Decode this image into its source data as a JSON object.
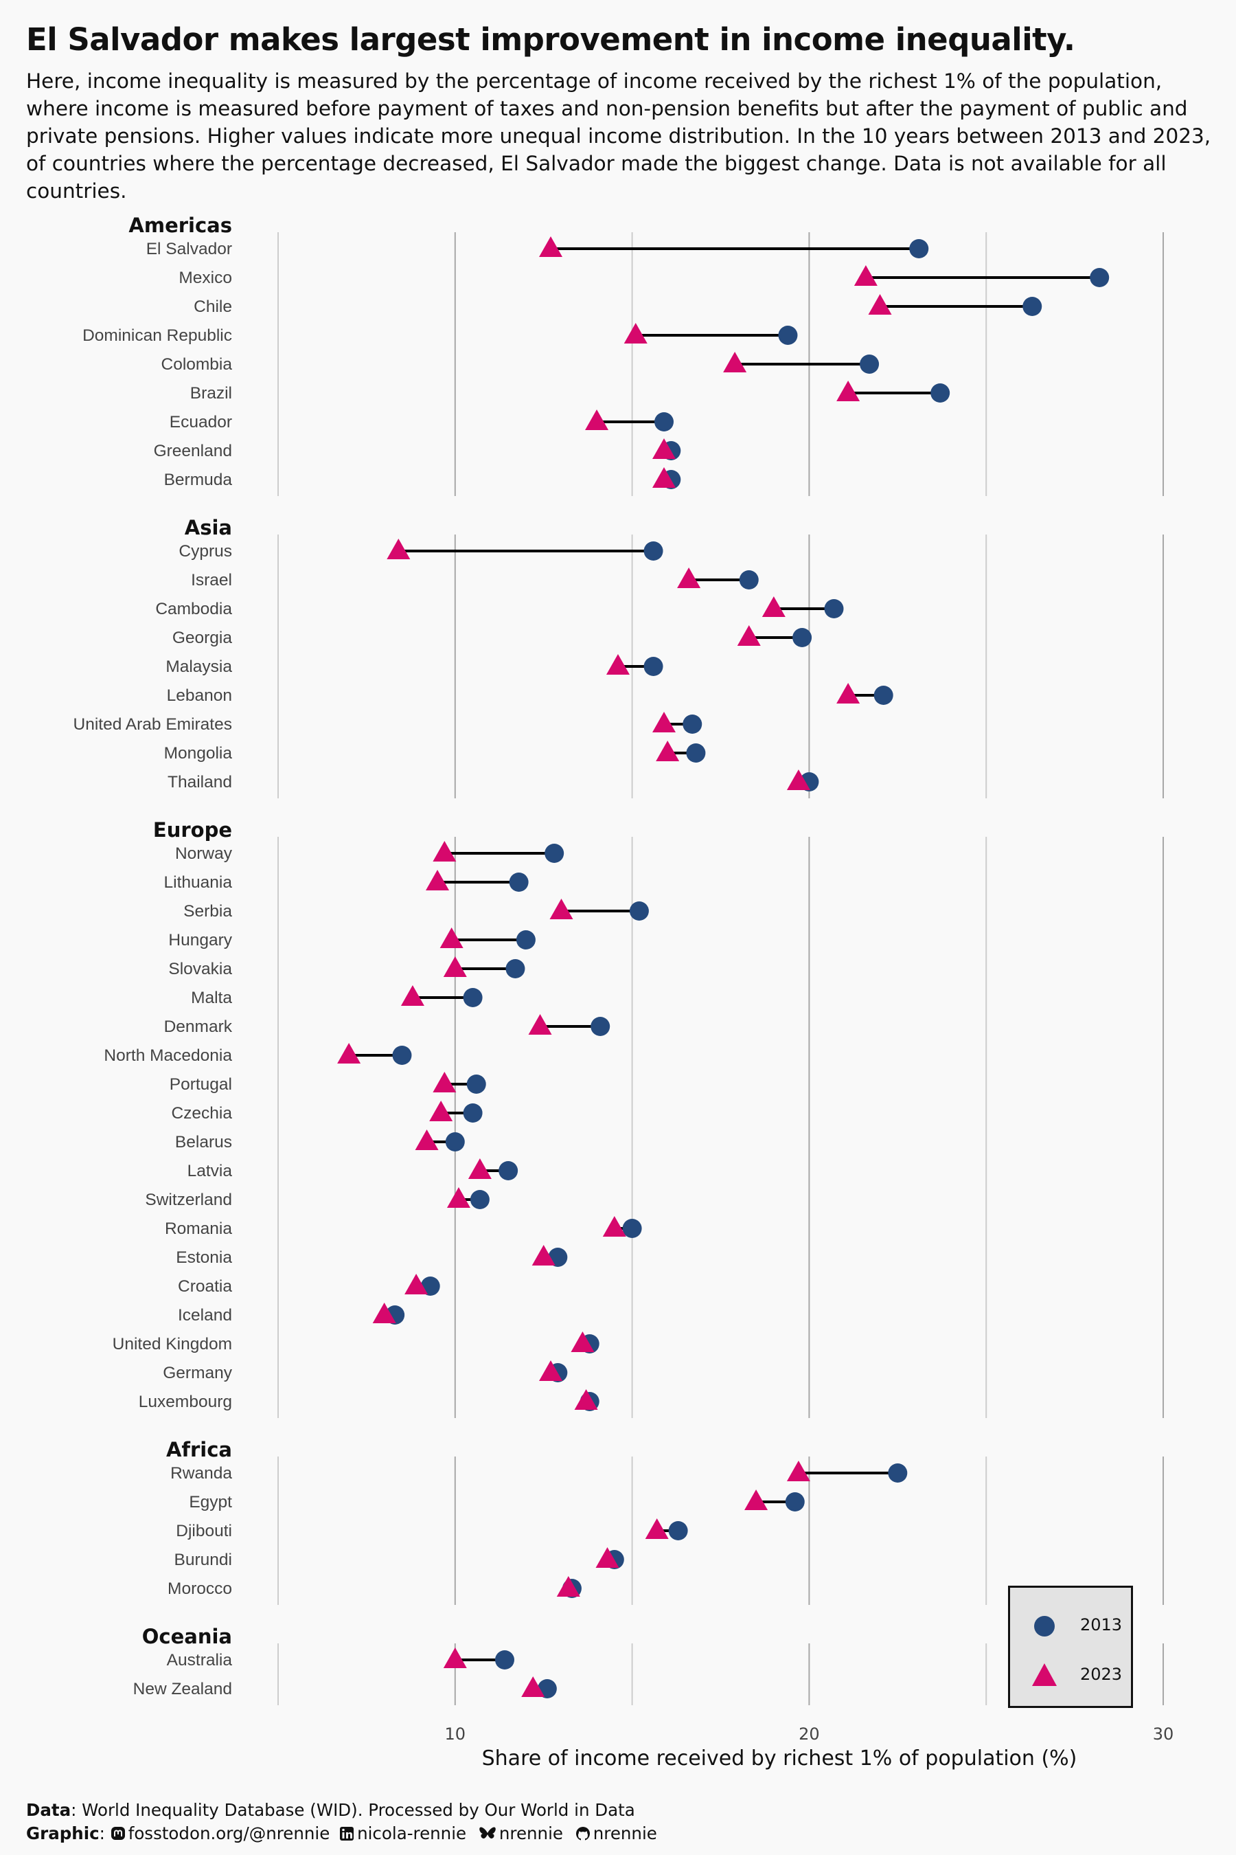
{
  "title": "El Salvador makes largest improvement in income inequality.",
  "subtitle": "Here, income inequality is measured by the percentage of income received by the richest 1% of the population, where income is measured before payment of taxes and non-pension benefits but after the payment of public and private pensions. Higher values indicate more unequal income distribution. In the 10 years between 2013 and 2023, of countries where the percentage decreased, El Salvador made the biggest change. Data is not available for all countries.",
  "colors": {
    "y2013": "#254a7d",
    "y2023": "#d6086c",
    "background": "#f9f9f9"
  },
  "legend": {
    "y2013": "2013",
    "y2023": "2023"
  },
  "footer": {
    "data_label": "Data",
    "data_text": ": World Inequality Database (WID). Processed by Our World in Data",
    "graphic_label": "Graphic",
    "mastodon": "fosstodon.org/@nrennie",
    "linkedin": "nicola-rennie",
    "bluesky": "nrennie",
    "github": "nrennie",
    "icons": [
      "mastodon-icon",
      "linkedin-icon",
      "bluesky-icon",
      "github-icon"
    ]
  },
  "chart_data": {
    "type": "dumbbell",
    "xlabel": "Share of income received by richest 1% of population (%)",
    "xticks": [
      10,
      20,
      30
    ],
    "xlim": [
      5,
      30
    ],
    "series": [
      {
        "name": "2013",
        "marker": "circle"
      },
      {
        "name": "2023",
        "marker": "triangle"
      }
    ],
    "groups": [
      {
        "region": "Americas",
        "countries": [
          {
            "name": "El Salvador",
            "v2013": 23.1,
            "v2023": 12.7
          },
          {
            "name": "Mexico",
            "v2013": 28.2,
            "v2023": 21.6
          },
          {
            "name": "Chile",
            "v2013": 26.3,
            "v2023": 22.0
          },
          {
            "name": "Dominican Republic",
            "v2013": 19.4,
            "v2023": 15.1
          },
          {
            "name": "Colombia",
            "v2013": 21.7,
            "v2023": 17.9
          },
          {
            "name": "Brazil",
            "v2013": 23.7,
            "v2023": 21.1
          },
          {
            "name": "Ecuador",
            "v2013": 15.9,
            "v2023": 14.0
          },
          {
            "name": "Greenland",
            "v2013": 16.1,
            "v2023": 15.9
          },
          {
            "name": "Bermuda",
            "v2013": 16.1,
            "v2023": 15.9
          }
        ]
      },
      {
        "region": "Asia",
        "countries": [
          {
            "name": "Cyprus",
            "v2013": 15.6,
            "v2023": 8.4
          },
          {
            "name": "Israel",
            "v2013": 18.3,
            "v2023": 16.6
          },
          {
            "name": "Cambodia",
            "v2013": 20.7,
            "v2023": 19.0
          },
          {
            "name": "Georgia",
            "v2013": 19.8,
            "v2023": 18.3
          },
          {
            "name": "Malaysia",
            "v2013": 15.6,
            "v2023": 14.6
          },
          {
            "name": "Lebanon",
            "v2013": 22.1,
            "v2023": 21.1
          },
          {
            "name": "United Arab Emirates",
            "v2013": 16.7,
            "v2023": 15.9
          },
          {
            "name": "Mongolia",
            "v2013": 16.8,
            "v2023": 16.0
          },
          {
            "name": "Thailand",
            "v2013": 20.0,
            "v2023": 19.7
          }
        ]
      },
      {
        "region": "Europe",
        "countries": [
          {
            "name": "Norway",
            "v2013": 12.8,
            "v2023": 9.7
          },
          {
            "name": "Lithuania",
            "v2013": 11.8,
            "v2023": 9.5
          },
          {
            "name": "Serbia",
            "v2013": 15.2,
            "v2023": 13.0
          },
          {
            "name": "Hungary",
            "v2013": 12.0,
            "v2023": 9.9
          },
          {
            "name": "Slovakia",
            "v2013": 11.7,
            "v2023": 10.0
          },
          {
            "name": "Malta",
            "v2013": 10.5,
            "v2023": 8.8
          },
          {
            "name": "Denmark",
            "v2013": 14.1,
            "v2023": 12.4
          },
          {
            "name": "North Macedonia",
            "v2013": 8.5,
            "v2023": 7.0
          },
          {
            "name": "Portugal",
            "v2013": 10.6,
            "v2023": 9.7
          },
          {
            "name": "Czechia",
            "v2013": 10.5,
            "v2023": 9.6
          },
          {
            "name": "Belarus",
            "v2013": 10.0,
            "v2023": 9.2
          },
          {
            "name": "Latvia",
            "v2013": 11.5,
            "v2023": 10.7
          },
          {
            "name": "Switzerland",
            "v2013": 10.7,
            "v2023": 10.1
          },
          {
            "name": "Romania",
            "v2013": 15.0,
            "v2023": 14.5
          },
          {
            "name": "Estonia",
            "v2013": 12.9,
            "v2023": 12.5
          },
          {
            "name": "Croatia",
            "v2013": 9.3,
            "v2023": 8.9
          },
          {
            "name": "Iceland",
            "v2013": 8.3,
            "v2023": 8.0
          },
          {
            "name": "United Kingdom",
            "v2013": 13.8,
            "v2023": 13.6
          },
          {
            "name": "Germany",
            "v2013": 12.9,
            "v2023": 12.7
          },
          {
            "name": "Luxembourg",
            "v2013": 13.8,
            "v2023": 13.7
          }
        ]
      },
      {
        "region": "Africa",
        "countries": [
          {
            "name": "Rwanda",
            "v2013": 22.5,
            "v2023": 19.7
          },
          {
            "name": "Egypt",
            "v2013": 19.6,
            "v2023": 18.5
          },
          {
            "name": "Djibouti",
            "v2013": 16.3,
            "v2023": 15.7
          },
          {
            "name": "Burundi",
            "v2013": 14.5,
            "v2023": 14.3
          },
          {
            "name": "Morocco",
            "v2013": 13.3,
            "v2023": 13.2
          }
        ]
      },
      {
        "region": "Oceania",
        "countries": [
          {
            "name": "Australia",
            "v2013": 11.4,
            "v2023": 10.0
          },
          {
            "name": "New Zealand",
            "v2013": 12.6,
            "v2023": 12.2
          }
        ]
      }
    ]
  }
}
